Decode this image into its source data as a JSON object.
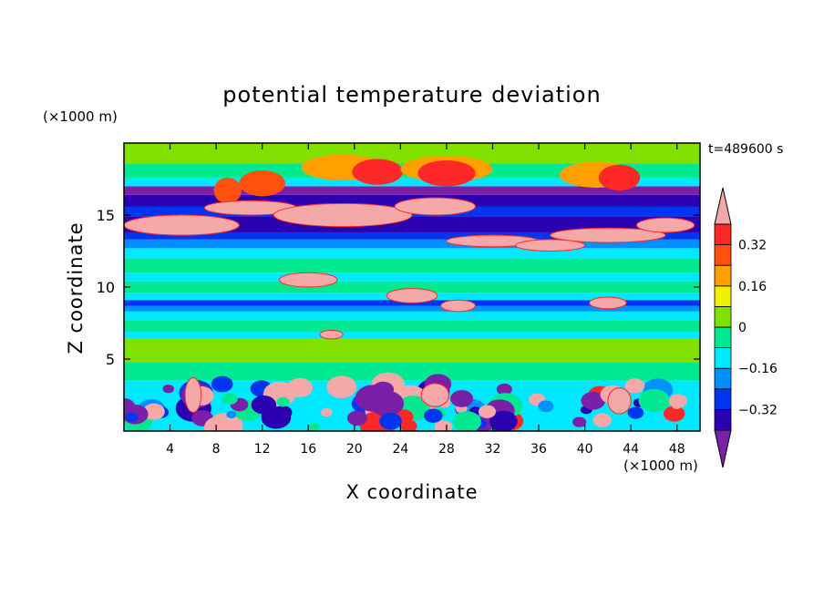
{
  "chart_data": {
    "type": "heatmap",
    "title": "potential temperature deviation",
    "xlabel": "X coordinate",
    "ylabel": "Z coordinate",
    "x_unit": "(×1000 m)",
    "y_unit": "(×1000 m)",
    "time_label": "t=489600 s",
    "xlim": [
      0,
      50
    ],
    "ylim": [
      0,
      20
    ],
    "x_ticks": [
      4,
      8,
      12,
      16,
      20,
      24,
      28,
      32,
      36,
      40,
      44,
      48
    ],
    "y_ticks": [
      5,
      10,
      15
    ],
    "grid": false,
    "colorbar": {
      "placement": "right",
      "levels": [
        -0.4,
        -0.32,
        -0.24,
        -0.16,
        -0.08,
        0,
        0.08,
        0.16,
        0.24,
        0.32,
        0.4
      ],
      "labeled_ticks": [
        0.32,
        0.16,
        0,
        -0.16,
        -0.32
      ],
      "tick_labels": [
        "0.32",
        "0.16",
        "0",
        "−0.16",
        "−0.32"
      ],
      "colors": [
        "#7a1fa8",
        "#2a00b0",
        "#0035f0",
        "#0090ff",
        "#00e8ff",
        "#00e890",
        "#80e000",
        "#f0f000",
        "#ffa000",
        "#ff5010",
        "#ff2828",
        "#f5a8a8"
      ]
    }
  }
}
